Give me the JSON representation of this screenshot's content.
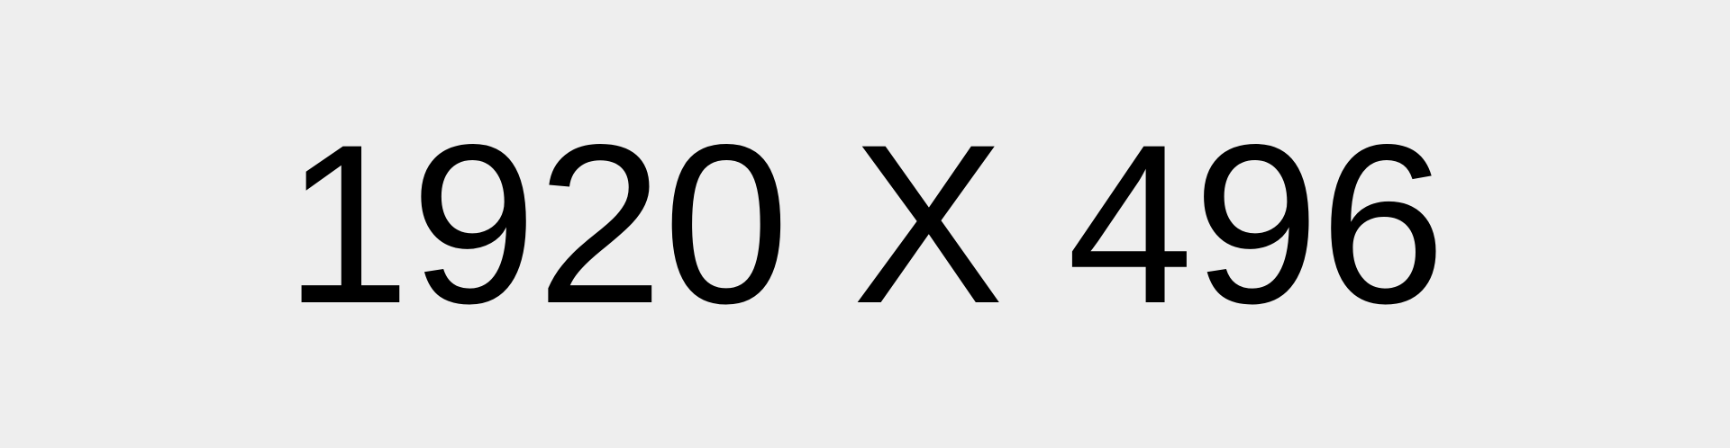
{
  "placeholder": {
    "text": "1920 X 496",
    "text_color": "#000000",
    "background_color": "#eeeeee"
  }
}
